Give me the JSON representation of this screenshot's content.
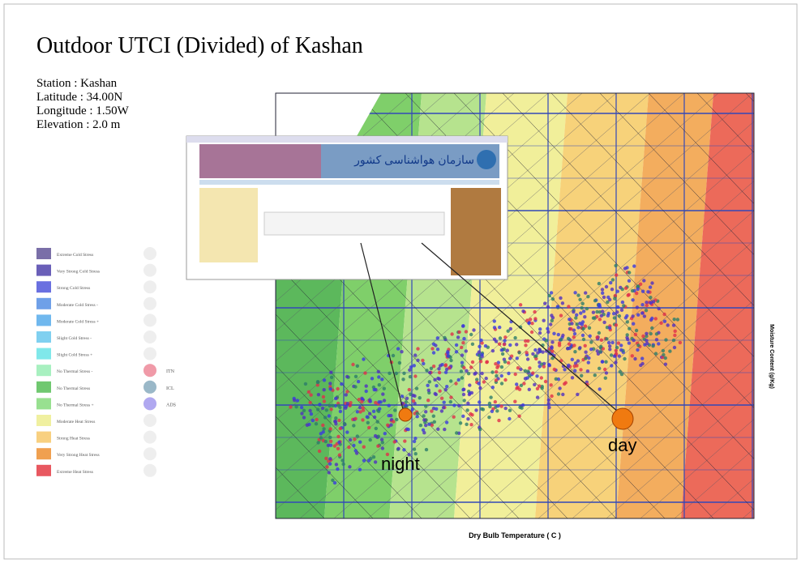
{
  "slide": {
    "title": "Outdoor UTCI (Divided) of Kashan",
    "station": [
      "Station : Kashan",
      "Latitude  : 34.00N",
      "Longitude : 1.50W",
      "Elevation : 2.0 m"
    ],
    "legend": [
      "Extreme Cold Stress",
      "Very Strong Cold Stress",
      "Strong Cold Stress",
      "Moderate Cold Stress -",
      "Moderate Cold Stress +",
      "Slight Cold Stress -",
      "Slight Cold Stress +",
      "No Thermal Stress -",
      "No Thermal Stress",
      "No Thermal Stress +",
      "Moderate Heat Stress",
      "Strong Heat Stress",
      "Very Strong Heat Stress",
      "Extreme Heat Stress"
    ],
    "markers": [
      "ITN",
      "ICL",
      "ADS"
    ],
    "x_axis_label": "Dry Bulb Temperature ( C )",
    "y_axis_label": "Moisture Content (g/Kg)",
    "night": "night",
    "day": "day",
    "overlay_org": "سازمان هواشناسی کشور"
  }
}
